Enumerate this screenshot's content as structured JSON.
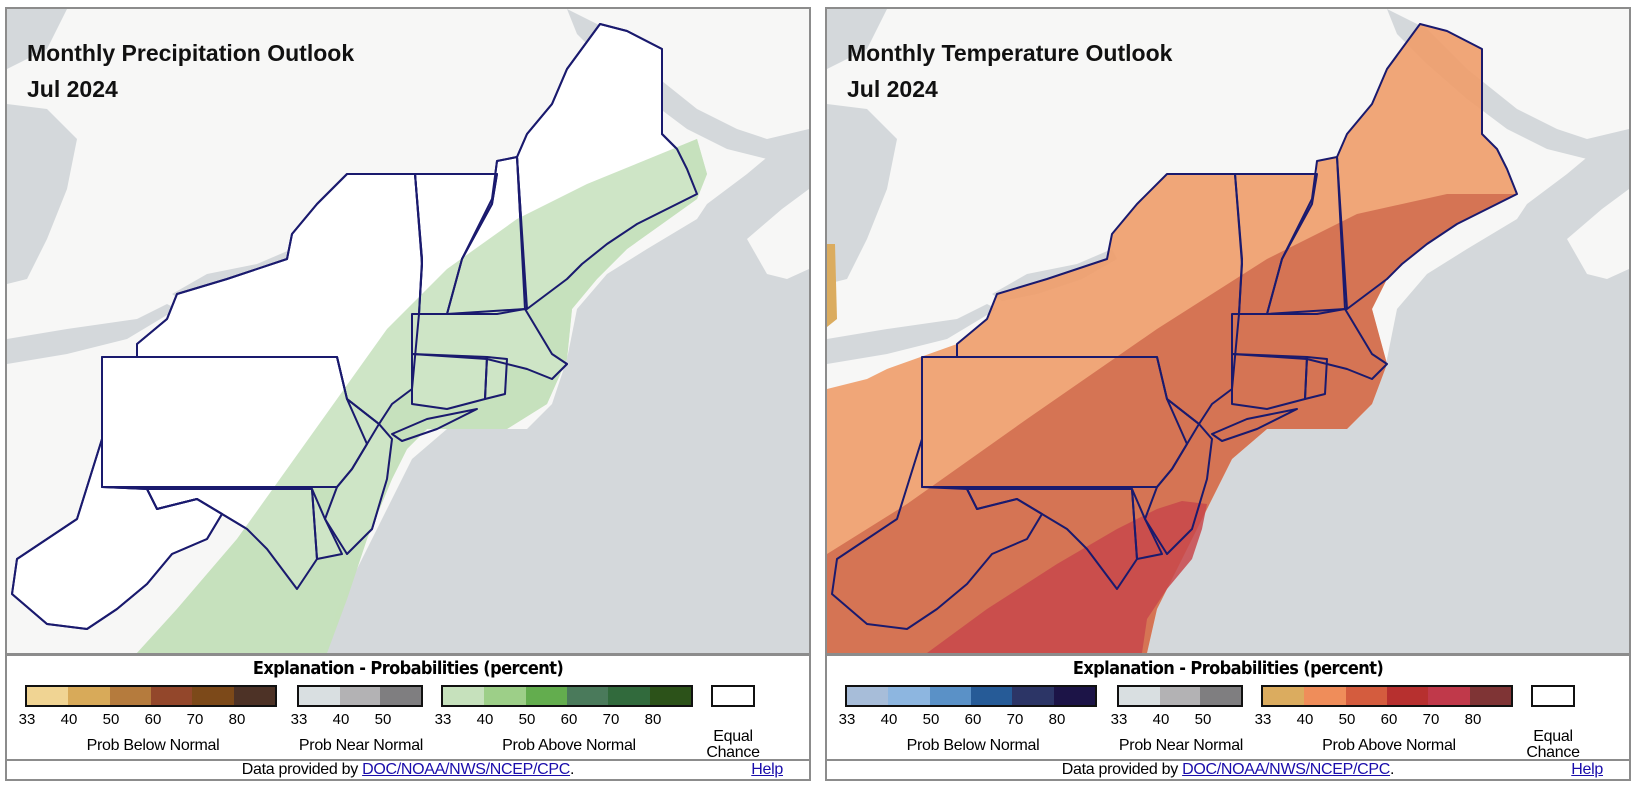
{
  "panels": [
    {
      "title": "Monthly Precipitation Outlook",
      "period": "Jul 2024",
      "legend": {
        "title": "Explanation - Probabilities (percent)",
        "below": {
          "label": "Prob Below Normal",
          "ticks": [
            "33",
            "40",
            "50",
            "60",
            "70",
            "80"
          ],
          "colors": [
            "#f0d493",
            "#d8aa59",
            "#b57b3d",
            "#93472b",
            "#7c4919",
            "#4d3226"
          ]
        },
        "near": {
          "label": "Prob Near Normal",
          "ticks": [
            "33",
            "40",
            "50"
          ],
          "colors": [
            "#d9dfe1",
            "#b3b2b4",
            "#7f7e80"
          ]
        },
        "above": {
          "label": "Prob Above Normal",
          "ticks": [
            "33",
            "40",
            "50",
            "60",
            "70",
            "80"
          ],
          "colors": [
            "#c6e1bc",
            "#9dcf88",
            "#63ad4e",
            "#4a7a5b",
            "#316a3c",
            "#2c5219"
          ]
        },
        "equal_chance": {
          "line1": "Equal",
          "line2": "Chance"
        }
      },
      "footer": {
        "prefix": "Data provided by ",
        "link": "DOC/NOAA/NWS/NCEP/CPC",
        "suffix": ".",
        "help": "Help"
      }
    },
    {
      "title": "Monthly Temperature Outlook",
      "period": "Jul 2024",
      "legend": {
        "title": "Explanation - Probabilities (percent)",
        "below": {
          "label": "Prob Below Normal",
          "ticks": [
            "33",
            "40",
            "50",
            "60",
            "70",
            "80"
          ],
          "colors": [
            "#a7bdd9",
            "#8db6e0",
            "#5a91c7",
            "#265b97",
            "#2c3566",
            "#1c1447"
          ]
        },
        "near": {
          "label": "Prob Near Normal",
          "ticks": [
            "33",
            "40",
            "50"
          ],
          "colors": [
            "#d9dfe1",
            "#b3b2b4",
            "#7f7e80"
          ]
        },
        "above": {
          "label": "Prob Above Normal",
          "ticks": [
            "33",
            "40",
            "50",
            "60",
            "70",
            "80"
          ],
          "colors": [
            "#dbac5f",
            "#ef8d5a",
            "#d45c3e",
            "#b7302f",
            "#c0394a",
            "#7f3435"
          ]
        },
        "equal_chance": {
          "line1": "Equal",
          "line2": "Chance"
        }
      },
      "footer": {
        "prefix": "Data provided by ",
        "link": "DOC/NOAA/NWS/NCEP/CPC",
        "suffix": ".",
        "help": "Help"
      }
    }
  ]
}
